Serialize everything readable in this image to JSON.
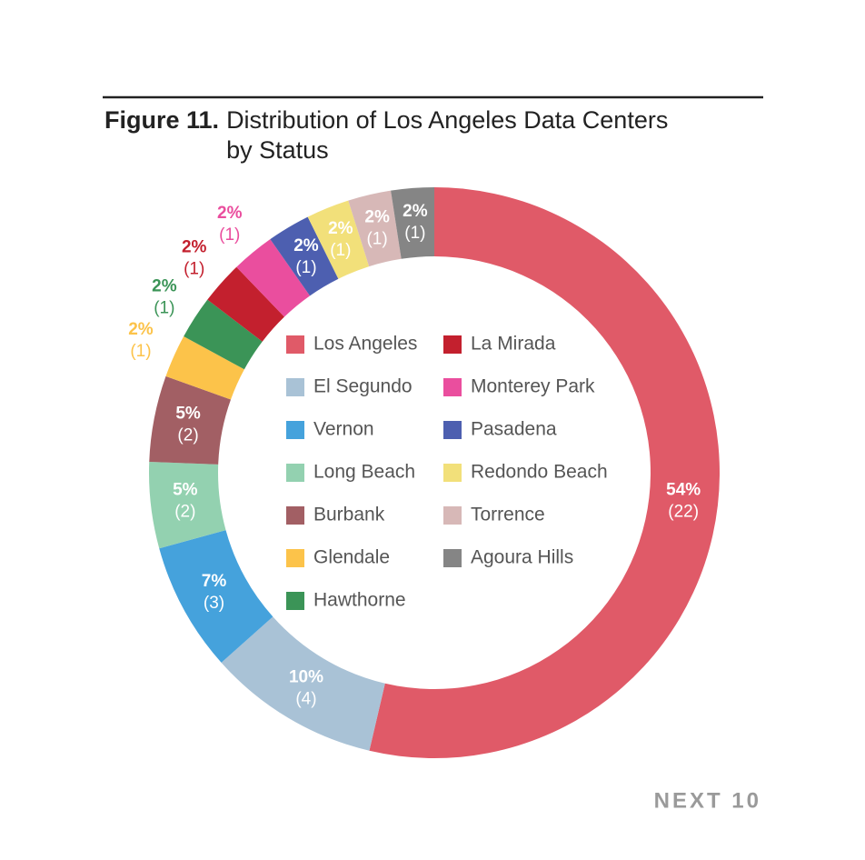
{
  "chart_data": {
    "type": "donut",
    "title_prefix": "Figure 11.",
    "title": "Distribution of Los Angeles Data Centers by Status",
    "categories": [
      "Los Angeles",
      "El Segundo",
      "Vernon",
      "Long Beach",
      "Burbank",
      "Glendale",
      "Hawthorne",
      "La Mirada",
      "Monterey Park",
      "Pasadena",
      "Redondo Beach",
      "Torrence",
      "Agoura Hills"
    ],
    "values": [
      22,
      4,
      3,
      2,
      2,
      1,
      1,
      1,
      1,
      1,
      1,
      1,
      1
    ],
    "value_labels": [
      "(22)",
      "(4)",
      "(3)",
      "(2)",
      "(2)",
      "(1)",
      "(1)",
      "(1)",
      "(1)",
      "(1)",
      "(1)",
      "(1)",
      "(1)"
    ],
    "percent_labels": [
      "54%",
      "10%",
      "7%",
      "5%",
      "5%",
      "2%",
      "2%",
      "2%",
      "2%",
      "2%",
      "2%",
      "2%",
      "2%"
    ],
    "colors": [
      "#e05a68",
      "#a9c2d6",
      "#45a2dc",
      "#93d1b0",
      "#a25f64",
      "#fcc34a",
      "#3b9457",
      "#c3202e",
      "#ea4e9e",
      "#4d5fb0",
      "#f2e07a",
      "#d7b8b7",
      "#858585"
    ],
    "legend": "center",
    "source": "NEXT 10"
  }
}
